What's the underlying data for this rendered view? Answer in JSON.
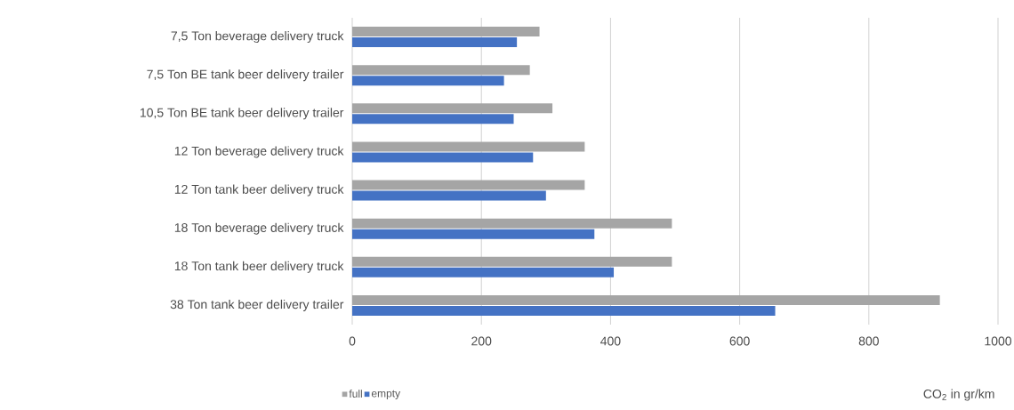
{
  "chart_data": {
    "type": "bar",
    "orientation": "horizontal",
    "categories": [
      "7,5 Ton beverage delivery truck",
      "7,5 Ton BE tank beer delivery trailer",
      "10,5 Ton BE tank beer delivery trailer",
      "12 Ton beverage delivery truck",
      "12 Ton tank beer delivery truck",
      "18 Ton beverage delivery truck",
      "18 Ton tank beer delivery truck",
      "38 Ton tank beer delivery trailer"
    ],
    "series": [
      {
        "name": "full",
        "color": "#a5a5a5",
        "values": [
          290,
          275,
          310,
          360,
          360,
          495,
          495,
          910
        ]
      },
      {
        "name": "empty",
        "color": "#4472c4",
        "values": [
          255,
          235,
          250,
          280,
          300,
          375,
          405,
          655
        ]
      }
    ],
    "xlabel": "CO$_{2}$ in gr/km",
    "xlim": [
      0,
      1000
    ],
    "xticks": [
      0,
      200,
      400,
      600,
      800,
      1000
    ],
    "grid": "x",
    "legend": "bottom"
  }
}
